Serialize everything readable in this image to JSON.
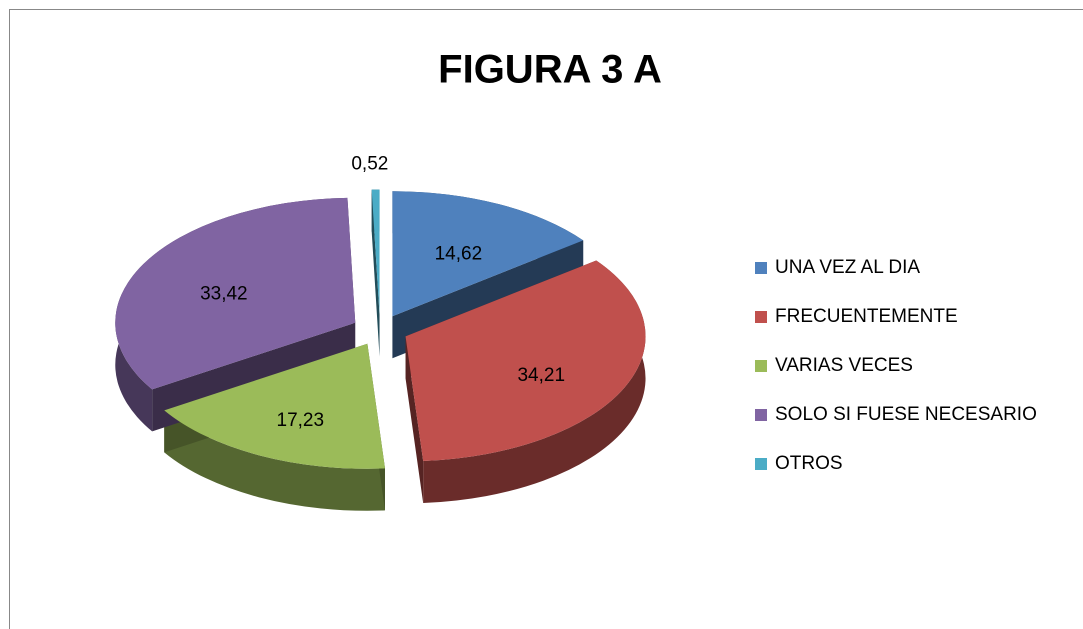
{
  "chart_data": {
    "type": "pie",
    "title": "FIGURA 3 A",
    "categories": [
      "UNA VEZ AL DIA",
      "FRECUENTEMENTE",
      "VARIAS VECES",
      "SOLO SI FUESE NECESARIO",
      "OTROS"
    ],
    "values": [
      14.62,
      34.21,
      17.23,
      33.42,
      0.52
    ],
    "value_labels": [
      "14,62",
      "34,21",
      "17,23",
      "33,42",
      "0,52"
    ],
    "colors": [
      "#4f81bd",
      "#c0504d",
      "#9bbb59",
      "#8064a2",
      "#4bacc6"
    ],
    "legend": "right"
  }
}
